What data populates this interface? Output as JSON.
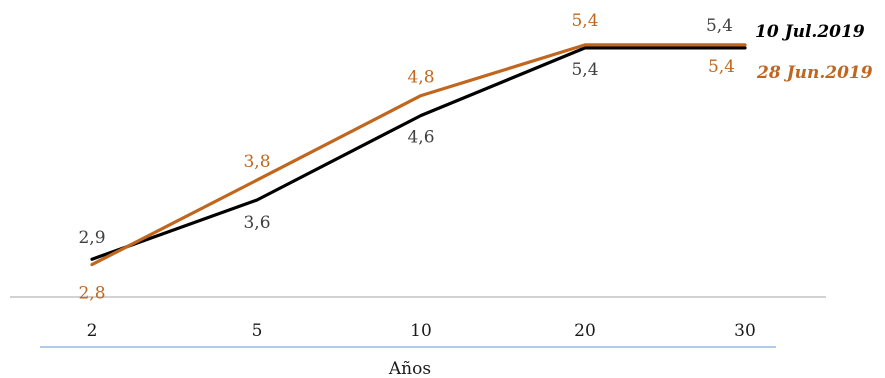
{
  "chart_data": {
    "type": "line",
    "categories": [
      "2",
      "5",
      "10",
      "20",
      "30"
    ],
    "xlabel": "Años",
    "ylabel": "",
    "title": "",
    "ylim": [
      2.5,
      5.6
    ],
    "grid": false,
    "legend": "inline-right",
    "series": [
      {
        "name": "10 Jul.2019",
        "values": [
          2.9,
          3.6,
          4.6,
          5.4,
          5.4
        ],
        "labels": [
          "2,9",
          "3,6",
          "4,6",
          "5,4",
          "5,4"
        ],
        "color": "#000000",
        "label_color": "#404040"
      },
      {
        "name": "28 Jun.2019",
        "values": [
          2.8,
          3.8,
          4.8,
          5.4,
          5.4
        ],
        "labels": [
          "2,8",
          "3,8",
          "4,8",
          "5,4",
          "5,4"
        ],
        "color": "#C0661F",
        "label_color": "#C0661F"
      }
    ]
  }
}
